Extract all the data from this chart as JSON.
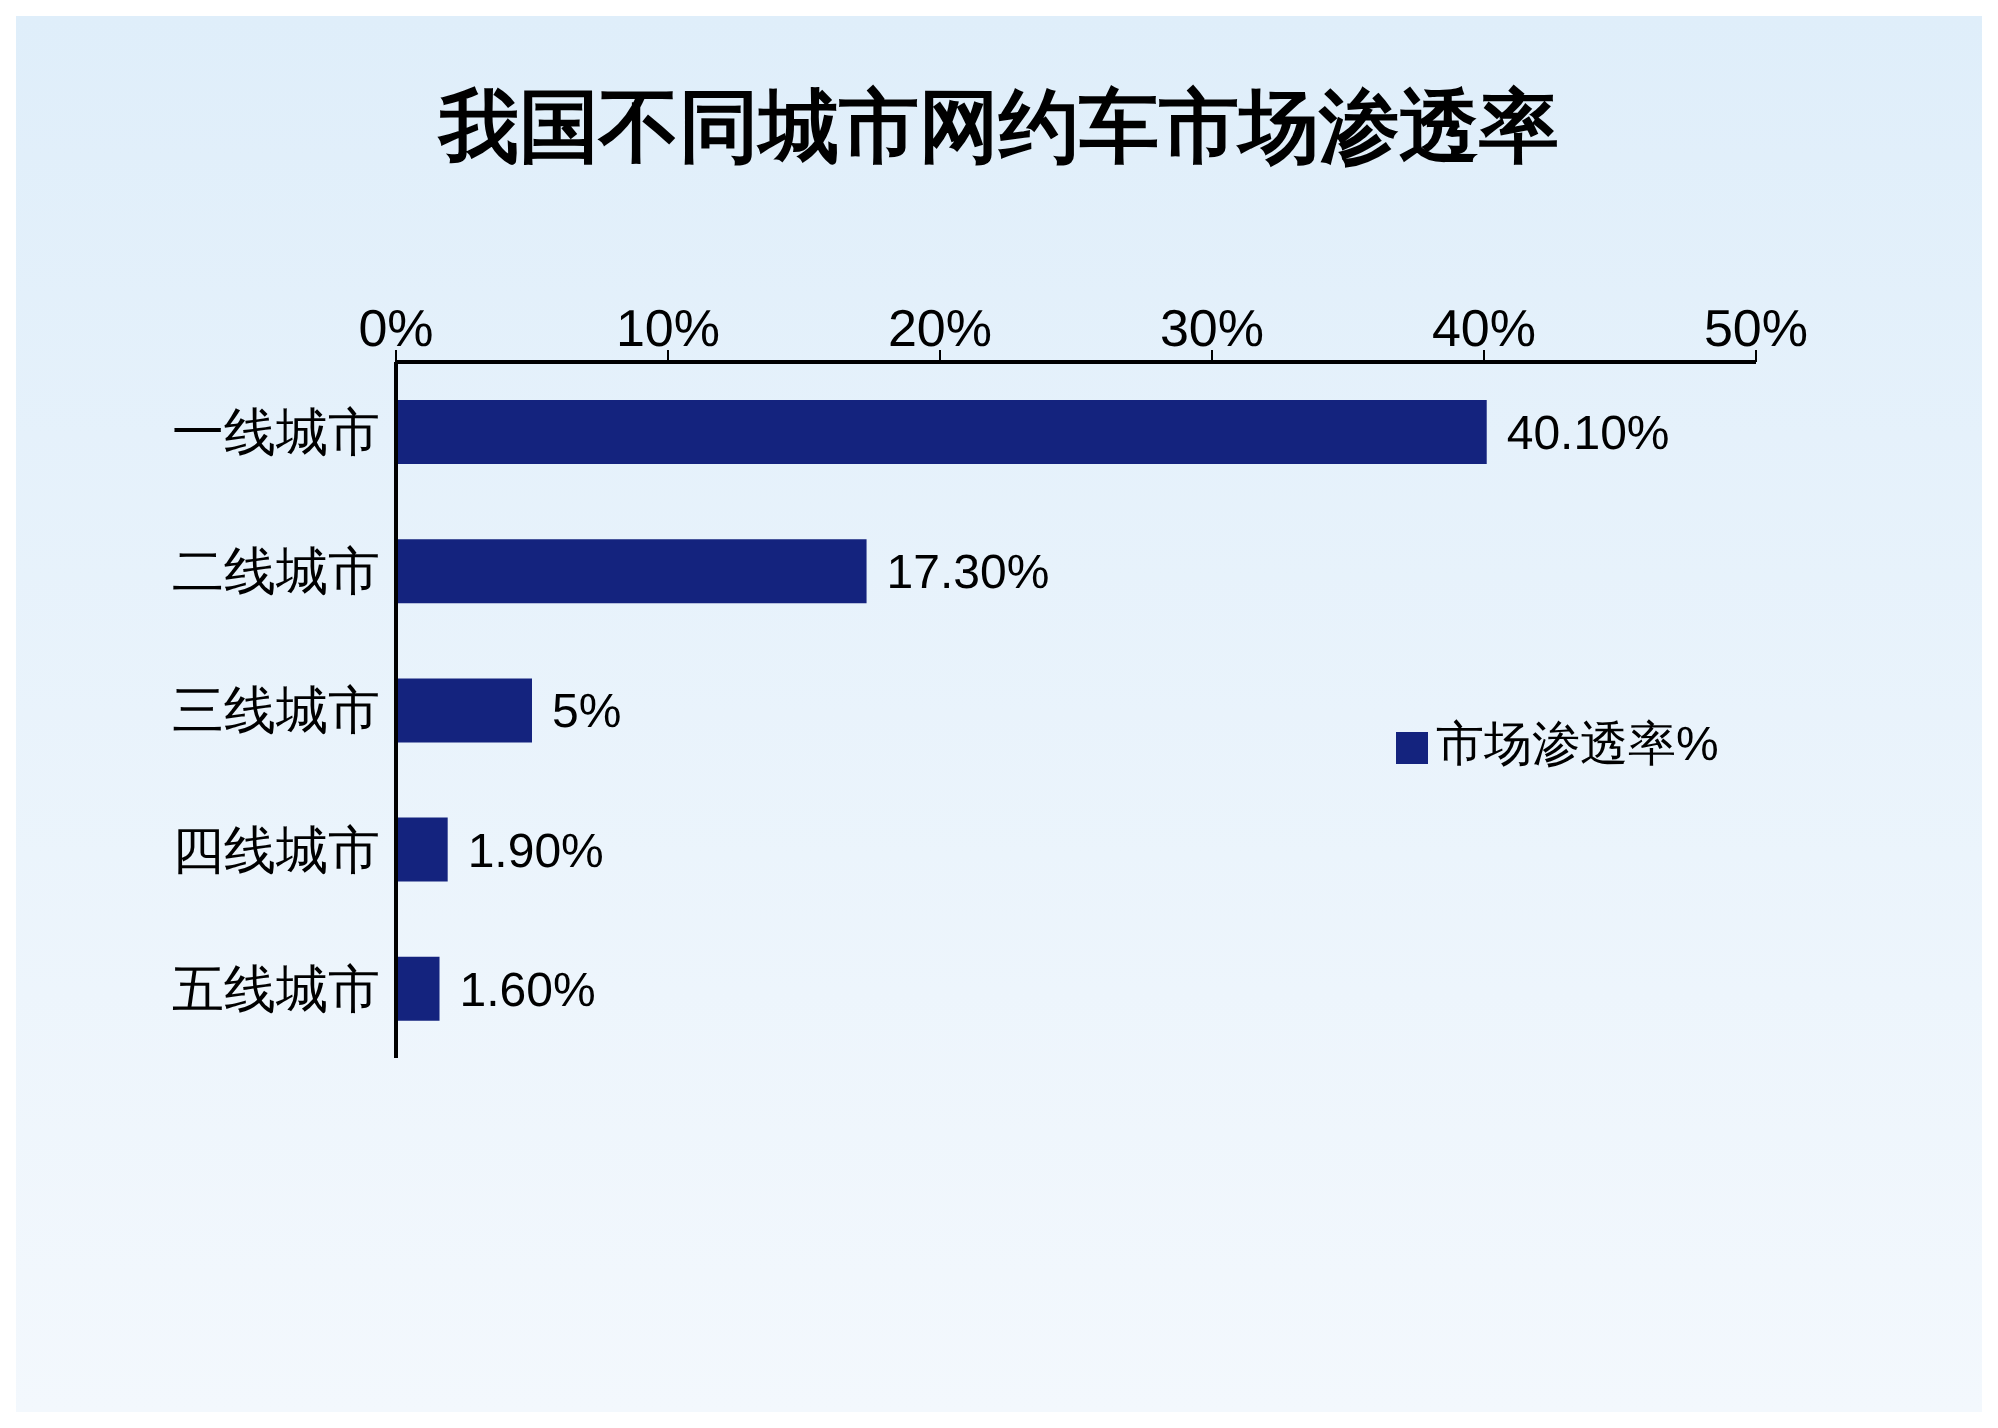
{
  "chart_data": {
    "type": "bar",
    "orientation": "horizontal",
    "title": "我国不同城市网约车市场渗透率",
    "categories": [
      "一线城市",
      "二线城市",
      "三线城市",
      "四线城市",
      "五线城市"
    ],
    "series": [
      {
        "name": "市场渗透率%",
        "color": "#14237e",
        "values": [
          40.1,
          17.3,
          5,
          1.9,
          1.6
        ],
        "value_labels": [
          "40.10%",
          "17.30%",
          "5%",
          "1.90%",
          "1.60%"
        ]
      }
    ],
    "xlim": [
      0,
      50
    ],
    "xticks": [
      {
        "value": 0,
        "label": "0%"
      },
      {
        "value": 10,
        "label": "10%"
      },
      {
        "value": 20,
        "label": "20%"
      },
      {
        "value": 30,
        "label": "30%"
      },
      {
        "value": 40,
        "label": "40%"
      },
      {
        "value": 50,
        "label": "50%"
      }
    ],
    "grid": false,
    "legend": "right"
  }
}
